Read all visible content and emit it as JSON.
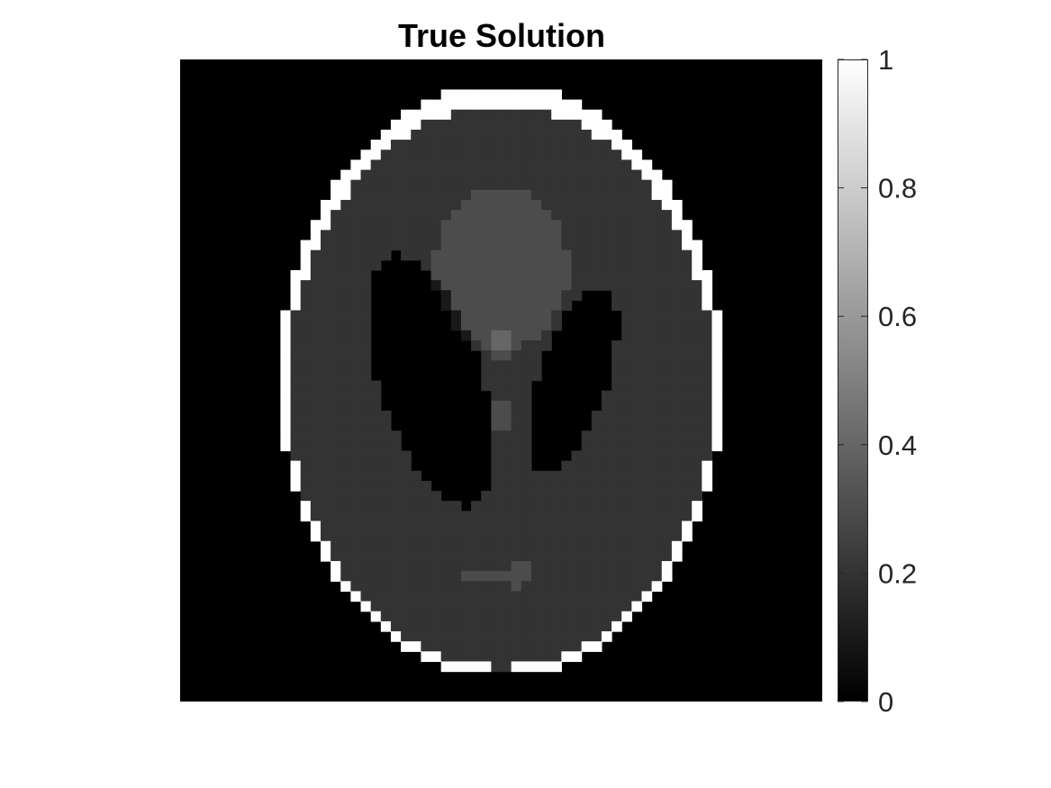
{
  "chart_data": {
    "type": "heatmap",
    "title": "True Solution",
    "xlabel": "",
    "ylabel": "",
    "colormap": "gray",
    "clim": [
      0,
      1
    ],
    "grid": false,
    "axes_visible": false,
    "grid_size": [
      64,
      64
    ],
    "image_description": "Shepp-Logan phantom",
    "colorbar": {
      "location": "right",
      "ticks": [
        0,
        0.2,
        0.4,
        0.6,
        0.8,
        1
      ],
      "tick_labels": [
        "0",
        "0.2",
        "0.4",
        "0.6",
        "0.8",
        "1"
      ]
    },
    "phantom_ellipses": [
      {
        "value": 1.0,
        "a": 0.69,
        "b": 0.92,
        "x0": 0.0,
        "y0": 0.0,
        "phi": 0
      },
      {
        "value": -0.8,
        "a": 0.6624,
        "b": 0.874,
        "x0": 0.0,
        "y0": -0.0184,
        "phi": 0
      },
      {
        "value": -0.2,
        "a": 0.11,
        "b": 0.31,
        "x0": 0.22,
        "y0": 0.0,
        "phi": -18
      },
      {
        "value": -0.2,
        "a": 0.16,
        "b": 0.41,
        "x0": -0.22,
        "y0": 0.0,
        "phi": 18
      },
      {
        "value": 0.1,
        "a": 0.21,
        "b": 0.25,
        "x0": 0.0,
        "y0": 0.35,
        "phi": 0
      },
      {
        "value": 0.1,
        "a": 0.046,
        "b": 0.046,
        "x0": 0.0,
        "y0": 0.1,
        "phi": 0
      },
      {
        "value": 0.1,
        "a": 0.046,
        "b": 0.046,
        "x0": 0.0,
        "y0": -0.1,
        "phi": 0
      },
      {
        "value": 0.1,
        "a": 0.046,
        "b": 0.023,
        "x0": -0.08,
        "y0": -0.605,
        "phi": 0
      },
      {
        "value": 0.1,
        "a": 0.023,
        "b": 0.023,
        "x0": 0.0,
        "y0": -0.606,
        "phi": 0
      },
      {
        "value": 0.1,
        "a": 0.023,
        "b": 0.046,
        "x0": 0.06,
        "y0": -0.605,
        "phi": 0
      }
    ]
  }
}
